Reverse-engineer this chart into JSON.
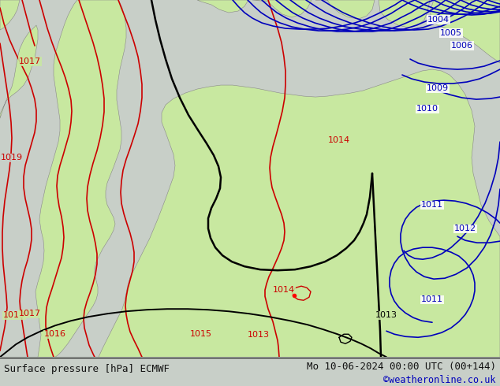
{
  "title_left": "Surface pressure [hPa] ECMWF",
  "title_right": "Mo 10-06-2024 00:00 UTC (00+144)",
  "watermark": "©weatheronline.co.uk",
  "bg_color": "#c8cfc8",
  "green_color": "#c8e8a0",
  "sea_color": "#c8cfc8",
  "text_color_black": "#000000",
  "text_color_blue": "#0000bb",
  "text_color_red": "#cc0000",
  "contour_blue": "#0000bb",
  "contour_red": "#cc0000",
  "contour_black": "#000000",
  "bottom_bar_color": "#d0d0d0",
  "bottom_text_color": "#111111",
  "watermark_color": "#0000bb",
  "fig_width": 6.34,
  "fig_height": 4.9,
  "dpi": 100
}
